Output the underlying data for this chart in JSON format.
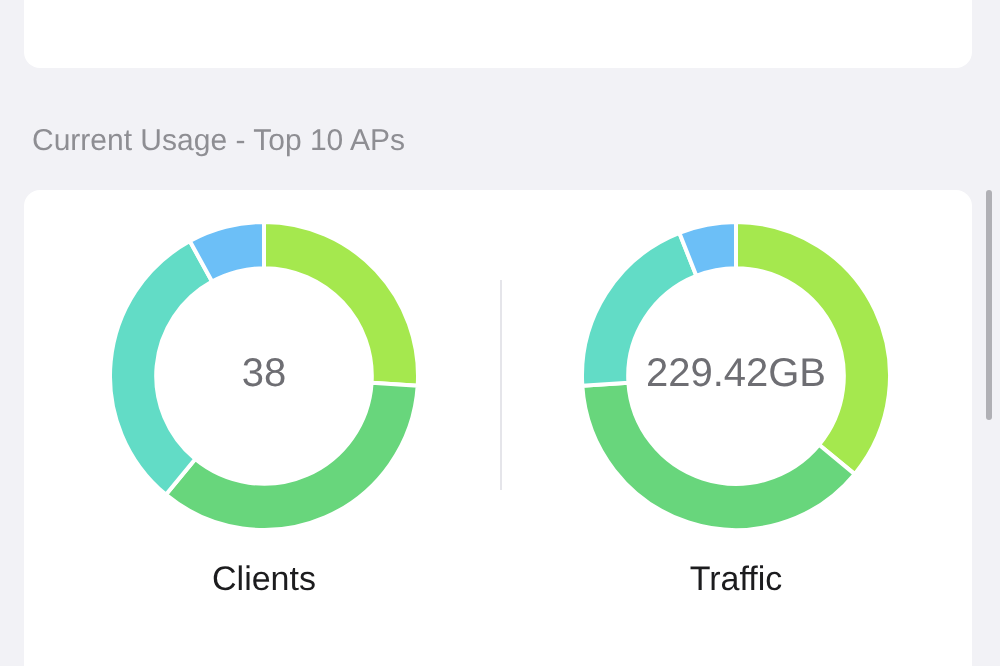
{
  "chart_data": [
    {
      "type": "donut",
      "title": "Current Usage - Top 10 APs",
      "xlabel": "Clients",
      "annotations": [
        "38"
      ],
      "categories": [
        null,
        null,
        null,
        null
      ],
      "values": [
        26,
        35,
        31,
        8
      ],
      "colors": [
        "#a5e84e",
        "#68d67c",
        "#62dcc6",
        "#6cbff7"
      ],
      "legend": false
    },
    {
      "type": "donut",
      "xlabel": "Traffic",
      "annotations": [
        "229.42GB"
      ],
      "categories": [
        null,
        null,
        null,
        null
      ],
      "values": [
        36,
        38,
        20,
        6
      ],
      "colors": [
        "#a5e84e",
        "#68d67c",
        "#62dcc6",
        "#6cbff7"
      ],
      "legend": false
    }
  ]
}
